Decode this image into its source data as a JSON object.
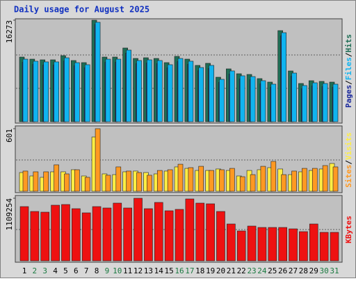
{
  "chart_data": [
    {
      "type": "bar",
      "title": "Daily usage for August 2025",
      "ylim": [
        0,
        16273
      ],
      "yticks": [
        16273
      ],
      "legend_separator": "/",
      "series": [
        {
          "name": "Hits",
          "color": "#1f6e55",
          "values": [
            10366,
            10031,
            9920,
            9920,
            10589,
            9808,
            9474,
            16273,
            10366,
            10366,
            11815,
            10143,
            10254,
            10143,
            9474,
            10477,
            10031,
            9028,
            9363,
            7133,
            8471,
            7691,
            7579,
            6911,
            6353,
            14601,
            8137,
            6130,
            6576,
            6465,
            6353
          ]
        },
        {
          "name": "Files",
          "color": "#10b4f0",
          "values": [
            10030,
            9700,
            9590,
            9590,
            10250,
            9470,
            9140,
            15940,
            10030,
            10030,
            11480,
            9810,
            9920,
            9810,
            9140,
            10140,
            9700,
            8690,
            9030,
            6800,
            8140,
            7360,
            7240,
            6580,
            6020,
            14270,
            7800,
            5800,
            6240,
            6130,
            6020
          ]
        },
        {
          "name": "Pages",
          "color": "#1c2a9c",
          "values": [
            9530,
            9200,
            9090,
            9090,
            9750,
            8970,
            8640,
            15600,
            9530,
            9530,
            10980,
            9310,
            9420,
            9310,
            8640,
            9640,
            9200,
            8190,
            8530,
            6300,
            7640,
            6860,
            6740,
            6080,
            5520,
            13770,
            7300,
            5300,
            5740,
            5630,
            5520
          ]
        }
      ]
    },
    {
      "type": "bar",
      "ylim": [
        0,
        601
      ],
      "yticks": [
        601
      ],
      "legend_separator": "/",
      "series": [
        {
          "name": "Visits",
          "color": "#ffee44",
          "values": [
            180,
            147,
            134,
            187,
            187,
            207,
            147,
            521,
            167,
            160,
            187,
            194,
            180,
            167,
            194,
            234,
            220,
            200,
            200,
            214,
            200,
            147,
            200,
            207,
            227,
            214,
            160,
            187,
            200,
            214,
            267
          ]
        },
        {
          "name": "Sites",
          "color": "#ff9922",
          "values": [
            194,
            187,
            187,
            254,
            167,
            207,
            134,
            601,
            154,
            234,
            194,
            180,
            154,
            200,
            207,
            260,
            227,
            240,
            200,
            207,
            220,
            140,
            160,
            240,
            287,
            160,
            194,
            220,
            220,
            247,
            234
          ]
        }
      ]
    },
    {
      "type": "bar",
      "ylim": [
        0,
        1109254
      ],
      "yticks": [
        1109254
      ],
      "categories": [
        "1",
        "2",
        "3",
        "4",
        "5",
        "6",
        "7",
        "8",
        "9",
        "10",
        "11",
        "12",
        "13",
        "14",
        "15",
        "16",
        "17",
        "18",
        "19",
        "20",
        "21",
        "22",
        "23",
        "24",
        "25",
        "26",
        "27",
        "28",
        "29",
        "30",
        "31"
      ],
      "category_colors": [
        "#000000",
        "#1a7a40",
        "#1a7a40",
        "#000000",
        "#000000",
        "#000000",
        "#000000",
        "#000000",
        "#1a7a40",
        "#1a7a40",
        "#000000",
        "#000000",
        "#000000",
        "#000000",
        "#000000",
        "#1a7a40",
        "#1a7a40",
        "#000000",
        "#000000",
        "#000000",
        "#000000",
        "#000000",
        "#1a7a40",
        "#1a7a40",
        "#000000",
        "#000000",
        "#000000",
        "#000000",
        "#000000",
        "#1a7a40",
        "#1a7a40"
      ],
      "series": [
        {
          "name": "KBytes",
          "color": "#ee1111",
          "values": [
            961350,
            875075,
            862750,
            986000,
            998325,
            924375,
            850425,
            961350,
            936700,
            1022975,
            936700,
            1109254,
            924375,
            1035300,
            887400,
            912050,
            1096925,
            1022975,
            1010650,
            875075,
            653225,
            529975,
            616250,
            591600,
            591600,
            591600,
            566950,
            517650,
            653225,
            505325,
            505325
          ]
        }
      ]
    }
  ]
}
